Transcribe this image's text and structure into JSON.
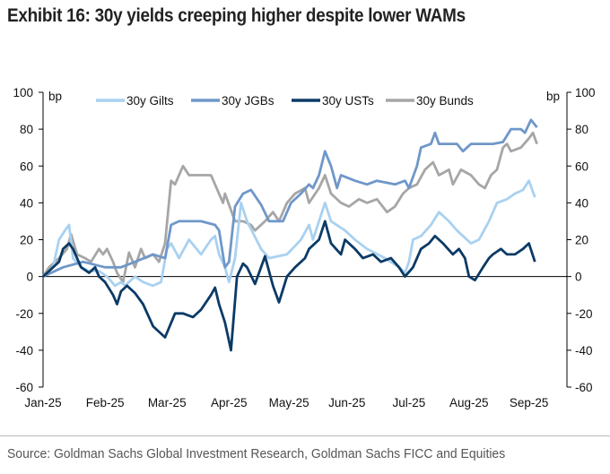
{
  "title": "Exhibit 16: 30y yields creeping higher despite lower WAMs",
  "source": "Source: Goldman Sachs Global Investment Research, Goldman Sachs FICC and Equities",
  "chart_data": {
    "type": "line",
    "title": "Exhibit 16: 30y yields creeping higher despite lower WAMs",
    "xlabel": "",
    "ylabel": "bp",
    "y2label": "bp",
    "ylim": [
      -60,
      100
    ],
    "yticks": [
      100,
      80,
      60,
      40,
      20,
      0,
      -20,
      -40,
      -60
    ],
    "xlim_days": [
      0,
      262
    ],
    "xticks": [
      {
        "label": "Jan-25",
        "day": 0
      },
      {
        "label": "Feb-25",
        "day": 31
      },
      {
        "label": "Mar-25",
        "day": 62
      },
      {
        "label": "Apr-25",
        "day": 93
      },
      {
        "label": "May-25",
        "day": 123
      },
      {
        "label": "Jun-25",
        "day": 152
      },
      {
        "label": "Jul-25",
        "day": 183
      },
      {
        "label": "Aug-25",
        "day": 213
      },
      {
        "label": "Sep-25",
        "day": 243
      }
    ],
    "legend_position": "top",
    "grid": false,
    "series": [
      {
        "name": "30y Gilts",
        "color": "#a9d1f0",
        "points": [
          [
            0,
            0
          ],
          [
            5,
            5
          ],
          [
            8,
            20
          ],
          [
            11,
            25
          ],
          [
            13,
            28
          ],
          [
            15,
            10
          ],
          [
            19,
            5
          ],
          [
            23,
            3
          ],
          [
            28,
            3
          ],
          [
            32,
            0
          ],
          [
            36,
            -5
          ],
          [
            39,
            -3
          ],
          [
            41,
            -5
          ],
          [
            46,
            0
          ],
          [
            50,
            -3
          ],
          [
            55,
            -5
          ],
          [
            59,
            -3
          ],
          [
            62,
            15
          ],
          [
            64,
            18
          ],
          [
            68,
            10
          ],
          [
            73,
            20
          ],
          [
            79,
            12
          ],
          [
            84,
            20
          ],
          [
            86,
            22
          ],
          [
            88,
            12
          ],
          [
            91,
            5
          ],
          [
            93,
            -3
          ],
          [
            96,
            10
          ],
          [
            99,
            40
          ],
          [
            102,
            30
          ],
          [
            109,
            15
          ],
          [
            113,
            10
          ],
          [
            122,
            12
          ],
          [
            129,
            20
          ],
          [
            133,
            28
          ],
          [
            135,
            20
          ],
          [
            138,
            30
          ],
          [
            141,
            40
          ],
          [
            144,
            30
          ],
          [
            151,
            25
          ],
          [
            156,
            20
          ],
          [
            162,
            15
          ],
          [
            171,
            10
          ],
          [
            178,
            5
          ],
          [
            181,
            2
          ],
          [
            183,
            8
          ],
          [
            185,
            20
          ],
          [
            189,
            22
          ],
          [
            194,
            28
          ],
          [
            198,
            35
          ],
          [
            203,
            30
          ],
          [
            207,
            25
          ],
          [
            214,
            18
          ],
          [
            218,
            20
          ],
          [
            223,
            30
          ],
          [
            227,
            40
          ],
          [
            232,
            42
          ],
          [
            236,
            45
          ],
          [
            240,
            47
          ],
          [
            243,
            52
          ],
          [
            246,
            43
          ]
        ]
      },
      {
        "name": "30y JGBs",
        "color": "#6f97c9",
        "points": [
          [
            0,
            0
          ],
          [
            10,
            5
          ],
          [
            20,
            8
          ],
          [
            31,
            5
          ],
          [
            39,
            5
          ],
          [
            46,
            8
          ],
          [
            55,
            12
          ],
          [
            61,
            10
          ],
          [
            64,
            28
          ],
          [
            68,
            30
          ],
          [
            79,
            30
          ],
          [
            86,
            28
          ],
          [
            88,
            25
          ],
          [
            91,
            5
          ],
          [
            93,
            8
          ],
          [
            96,
            38
          ],
          [
            100,
            45
          ],
          [
            104,
            47
          ],
          [
            109,
            39
          ],
          [
            113,
            30
          ],
          [
            120,
            30
          ],
          [
            124,
            40
          ],
          [
            129,
            45
          ],
          [
            133,
            50
          ],
          [
            135,
            48
          ],
          [
            138,
            55
          ],
          [
            141,
            68
          ],
          [
            144,
            60
          ],
          [
            147,
            48
          ],
          [
            149,
            55
          ],
          [
            156,
            52
          ],
          [
            162,
            50
          ],
          [
            167,
            52
          ],
          [
            176,
            50
          ],
          [
            181,
            52
          ],
          [
            183,
            48
          ],
          [
            187,
            60
          ],
          [
            189,
            70
          ],
          [
            194,
            72
          ],
          [
            196,
            78
          ],
          [
            198,
            72
          ],
          [
            203,
            72
          ],
          [
            207,
            72
          ],
          [
            210,
            68
          ],
          [
            214,
            72
          ],
          [
            221,
            72
          ],
          [
            225,
            72
          ],
          [
            230,
            73
          ],
          [
            234,
            80
          ],
          [
            239,
            80
          ],
          [
            241,
            78
          ],
          [
            244,
            85
          ],
          [
            247,
            81
          ]
        ]
      },
      {
        "name": "30y USTs",
        "color": "#0b3a66",
        "points": [
          [
            0,
            0
          ],
          [
            3,
            3
          ],
          [
            8,
            8
          ],
          [
            10,
            15
          ],
          [
            13,
            18
          ],
          [
            15,
            15
          ],
          [
            19,
            5
          ],
          [
            23,
            2
          ],
          [
            26,
            5
          ],
          [
            28,
            0
          ],
          [
            31,
            -3
          ],
          [
            35,
            -10
          ],
          [
            37,
            -15
          ],
          [
            39,
            -8
          ],
          [
            42,
            -5
          ],
          [
            46,
            -9
          ],
          [
            50,
            -15
          ],
          [
            55,
            -27
          ],
          [
            61,
            -33
          ],
          [
            66,
            -20
          ],
          [
            70,
            -20
          ],
          [
            75,
            -22
          ],
          [
            79,
            -18
          ],
          [
            84,
            -10
          ],
          [
            86,
            -6
          ],
          [
            88,
            -15
          ],
          [
            91,
            -25
          ],
          [
            94,
            -40
          ],
          [
            97,
            0
          ],
          [
            100,
            7
          ],
          [
            102,
            5
          ],
          [
            106,
            -4
          ],
          [
            111,
            11
          ],
          [
            115,
            -5
          ],
          [
            118,
            -14
          ],
          [
            122,
            0
          ],
          [
            126,
            5
          ],
          [
            131,
            10
          ],
          [
            133,
            15
          ],
          [
            138,
            20
          ],
          [
            141,
            30
          ],
          [
            144,
            18
          ],
          [
            149,
            12
          ],
          [
            151,
            20
          ],
          [
            156,
            15
          ],
          [
            160,
            10
          ],
          [
            165,
            12
          ],
          [
            169,
            8
          ],
          [
            174,
            10
          ],
          [
            178,
            5
          ],
          [
            181,
            0
          ],
          [
            185,
            5
          ],
          [
            189,
            15
          ],
          [
            193,
            18
          ],
          [
            196,
            22
          ],
          [
            200,
            18
          ],
          [
            205,
            12
          ],
          [
            208,
            15
          ],
          [
            211,
            10
          ],
          [
            213,
            0
          ],
          [
            216,
            -2
          ],
          [
            220,
            5
          ],
          [
            223,
            10
          ],
          [
            225,
            12
          ],
          [
            229,
            15
          ],
          [
            232,
            12
          ],
          [
            236,
            12
          ],
          [
            240,
            15
          ],
          [
            243,
            18
          ],
          [
            246,
            8
          ]
        ]
      },
      {
        "name": "30y Bunds",
        "color": "#a6a6a6",
        "points": [
          [
            0,
            0
          ],
          [
            3,
            5
          ],
          [
            8,
            10
          ],
          [
            12,
            15
          ],
          [
            14,
            23
          ],
          [
            17,
            12
          ],
          [
            21,
            10
          ],
          [
            24,
            8
          ],
          [
            28,
            15
          ],
          [
            30,
            12
          ],
          [
            32,
            15
          ],
          [
            35,
            8
          ],
          [
            37,
            2
          ],
          [
            40,
            -3
          ],
          [
            43,
            13
          ],
          [
            46,
            5
          ],
          [
            49,
            15
          ],
          [
            51,
            10
          ],
          [
            55,
            12
          ],
          [
            58,
            8
          ],
          [
            61,
            18
          ],
          [
            64,
            52
          ],
          [
            66,
            50
          ],
          [
            70,
            60
          ],
          [
            73,
            55
          ],
          [
            77,
            55
          ],
          [
            84,
            55
          ],
          [
            86,
            50
          ],
          [
            90,
            40
          ],
          [
            91,
            45
          ],
          [
            96,
            30
          ],
          [
            100,
            30
          ],
          [
            104,
            28
          ],
          [
            106,
            25
          ],
          [
            111,
            30
          ],
          [
            115,
            35
          ],
          [
            118,
            30
          ],
          [
            122,
            40
          ],
          [
            126,
            45
          ],
          [
            131,
            48
          ],
          [
            133,
            40
          ],
          [
            138,
            48
          ],
          [
            141,
            55
          ],
          [
            144,
            45
          ],
          [
            149,
            40
          ],
          [
            153,
            38
          ],
          [
            158,
            42
          ],
          [
            162,
            40
          ],
          [
            167,
            42
          ],
          [
            172,
            35
          ],
          [
            176,
            38
          ],
          [
            180,
            45
          ],
          [
            183,
            48
          ],
          [
            187,
            50
          ],
          [
            191,
            58
          ],
          [
            195,
            62
          ],
          [
            198,
            55
          ],
          [
            203,
            58
          ],
          [
            205,
            50
          ],
          [
            209,
            58
          ],
          [
            214,
            55
          ],
          [
            218,
            50
          ],
          [
            221,
            48
          ],
          [
            224,
            55
          ],
          [
            227,
            58
          ],
          [
            230,
            70
          ],
          [
            232,
            72
          ],
          [
            234,
            68
          ],
          [
            239,
            70
          ],
          [
            243,
            75
          ],
          [
            245,
            78
          ],
          [
            247,
            72
          ]
        ]
      }
    ]
  }
}
